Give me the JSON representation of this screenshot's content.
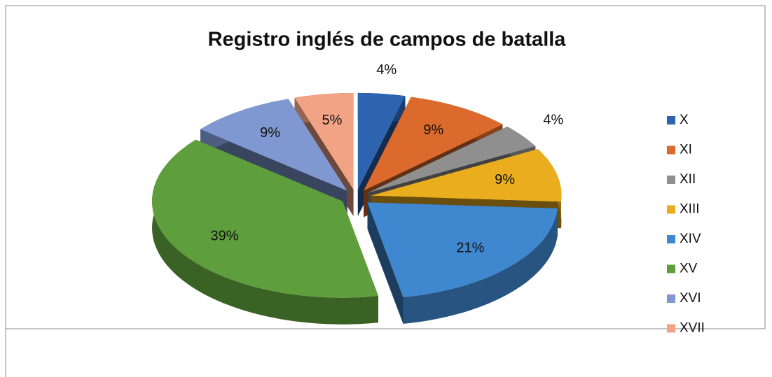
{
  "chart_data": {
    "type": "pie",
    "title": "Registro inglés de campos de batalla",
    "categories": [
      "X",
      "XI",
      "XII",
      "XIII",
      "XIV",
      "XV",
      "XVI",
      "XVII"
    ],
    "values": [
      4,
      9,
      4,
      9,
      21,
      39,
      9,
      5
    ],
    "value_labels": [
      "4%",
      "9%",
      "4%",
      "9%",
      "21%",
      "39%",
      "9%",
      "5%"
    ],
    "colors": [
      "#2e63b0",
      "#dc6a2c",
      "#8f8f8f",
      "#e9ad1e",
      "#3f88cf",
      "#5e9e3c",
      "#7f98d2",
      "#f2a386"
    ],
    "legend": "right"
  }
}
